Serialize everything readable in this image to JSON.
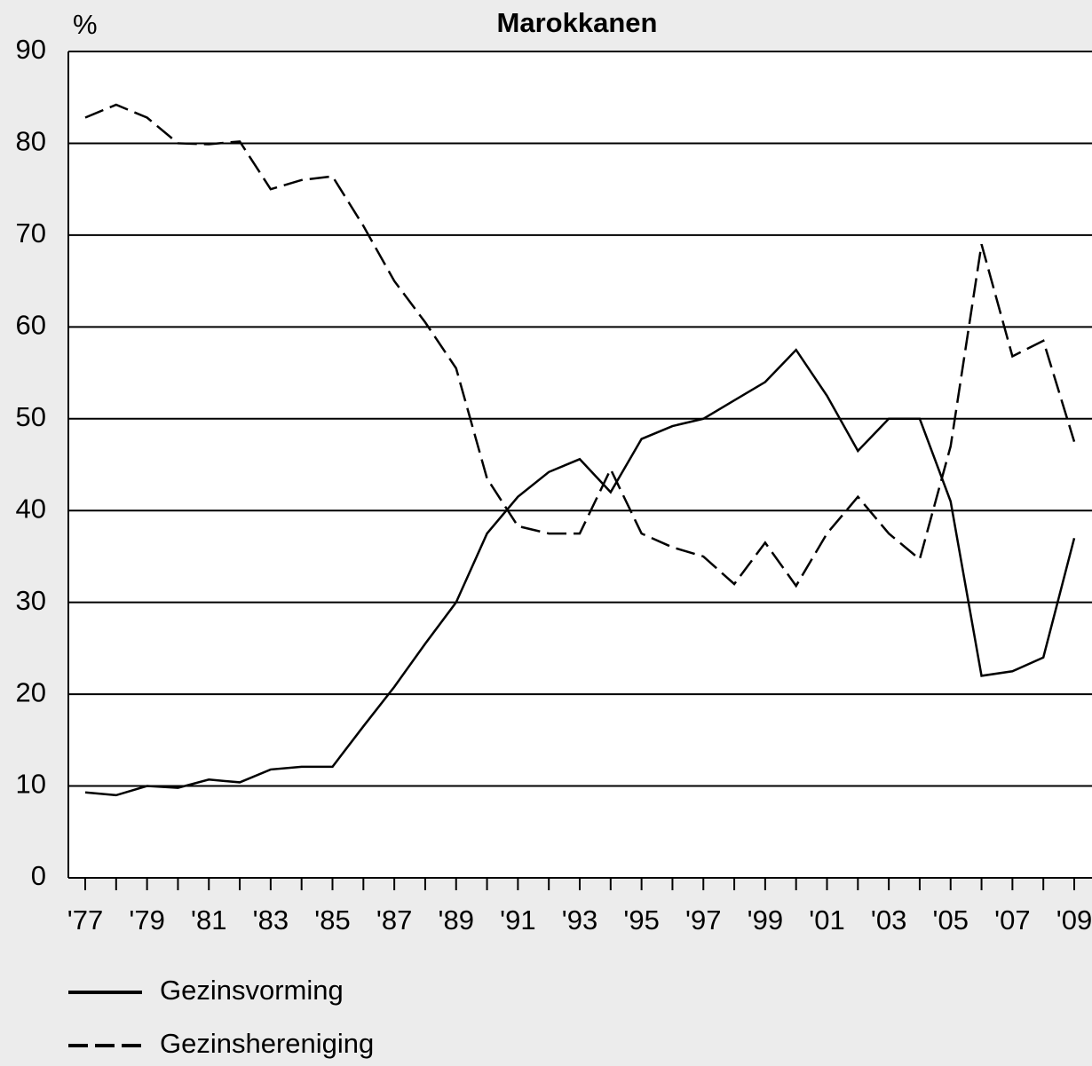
{
  "chart_data": {
    "type": "line",
    "title": "Marokkanen",
    "ylabel": "%",
    "categories": [
      "'77",
      null,
      "'79",
      null,
      "'81",
      null,
      "'83",
      null,
      "'85",
      null,
      "'87",
      null,
      "'89",
      null,
      "'91",
      null,
      "'93",
      null,
      "'95",
      null,
      "'97",
      null,
      "'99",
      null,
      "'01",
      null,
      "'03",
      null,
      "'05",
      null,
      "'07",
      null,
      "'09"
    ],
    "series": [
      {
        "name": "Gezinsvorming",
        "color": "#000000",
        "dash": false,
        "values": [
          9.3,
          9.0,
          10.0,
          9.8,
          10.7,
          10.4,
          11.8,
          12.1,
          12.1,
          16.5,
          20.8,
          25.5,
          30,
          37.5,
          41.5,
          44.2,
          45.6,
          42,
          47.8,
          49.2,
          50,
          52,
          54,
          57.5,
          52.5,
          46.5,
          50,
          50,
          41,
          22,
          22.5,
          24,
          37
        ]
      },
      {
        "name": "Gezinshereniging",
        "color": "#000000",
        "dash": true,
        "values": [
          82.8,
          84.2,
          82.8,
          80,
          79.9,
          80.2,
          75,
          76,
          76.4,
          71,
          65,
          60.5,
          55.5,
          43.5,
          38.3,
          37.5,
          37.5,
          44.5,
          37.5,
          36,
          35,
          32,
          36.5,
          31.8,
          37.5,
          41.5,
          37.5,
          34.7,
          47,
          69,
          56.8,
          58.5,
          47.5
        ]
      }
    ],
    "ylim": [
      0,
      90
    ],
    "yticks": [
      0,
      10,
      20,
      30,
      40,
      50,
      60,
      70,
      80,
      90
    ],
    "grid": true
  }
}
